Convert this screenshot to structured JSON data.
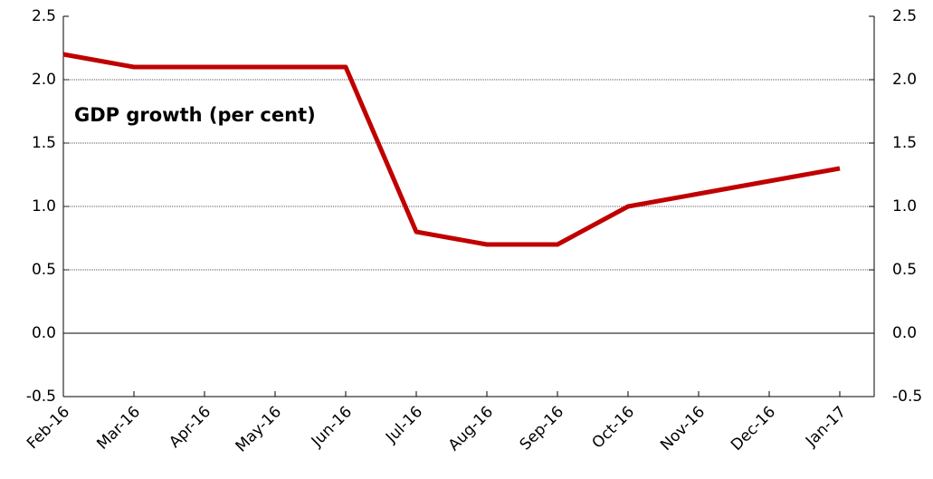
{
  "chart_data": {
    "type": "line",
    "title": "GDP growth (per cent)",
    "categories": [
      "Feb-16",
      "Mar-16",
      "Apr-16",
      "May-16",
      "Jun-16",
      "Jul-16",
      "Aug-16",
      "Sep-16",
      "Oct-16",
      "Nov-16",
      "Dec-16",
      "Jan-17"
    ],
    "series": [
      {
        "name": "GDP growth",
        "color": "#c00000",
        "values": [
          2.2,
          2.1,
          2.1,
          2.1,
          2.1,
          0.8,
          0.7,
          0.7,
          1.0,
          1.1,
          1.2,
          1.3
        ]
      }
    ],
    "ylim": [
      -0.5,
      2.5
    ],
    "yticks": [
      -0.5,
      {
        "value": 0,
        "label": "0.0"
      },
      0.5,
      {
        "value": 1,
        "label": "1.0"
      },
      1.5,
      {
        "value": 2,
        "label": "2.0"
      },
      2.5
    ],
    "y2lim": [
      -0.5,
      2.5
    ],
    "y2ticks": [
      -0.5,
      {
        "value": 0,
        "label": "0.0"
      },
      0.5,
      {
        "value": 1,
        "label": "1.0"
      },
      1.5,
      {
        "value": 2,
        "label": "2.0"
      },
      2.5
    ],
    "grid": true
  }
}
